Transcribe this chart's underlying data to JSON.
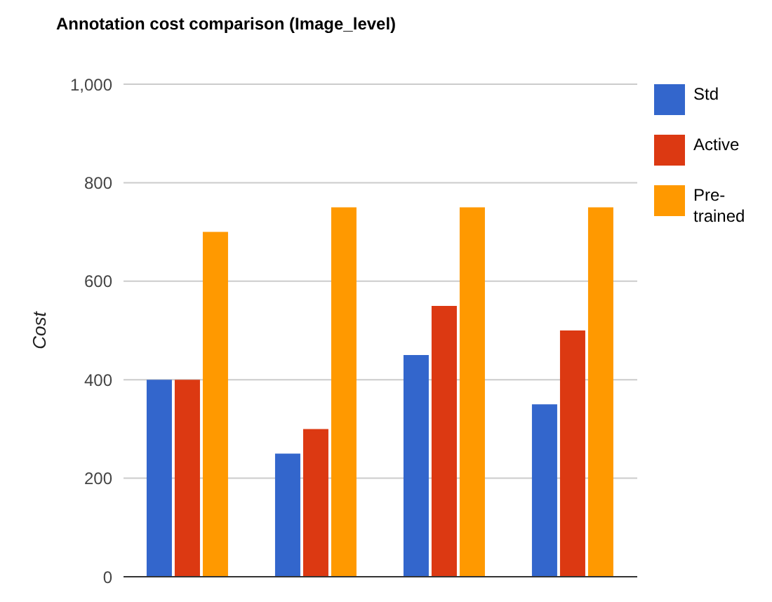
{
  "chart_data": {
    "type": "bar",
    "title": "Annotation cost comparison (Image_level)",
    "ylabel": "Cost",
    "categories": [
      null,
      null,
      null,
      null
    ],
    "series": [
      {
        "name": "Std",
        "color": "#3366cc",
        "values": [
          400,
          250,
          450,
          350
        ]
      },
      {
        "name": "Active",
        "color": "#dc3912",
        "values": [
          400,
          300,
          550,
          500
        ]
      },
      {
        "name": "Pre-trained",
        "color": "#ff9900",
        "values": [
          700,
          750,
          750,
          750
        ]
      }
    ],
    "ylim": [
      0,
      1000
    ],
    "yticks": [
      0,
      200,
      400,
      600,
      800,
      {
        "value": 1000,
        "label": "1,000"
      }
    ],
    "grid": "y",
    "legend": "top right"
  }
}
